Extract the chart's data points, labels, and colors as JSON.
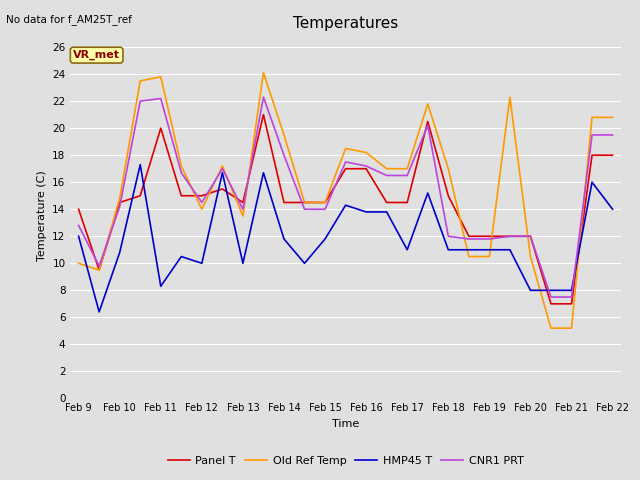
{
  "title": "Temperatures",
  "xlabel": "Time",
  "ylabel": "Temperature (C)",
  "annotation_text": "No data for f_AM25T_ref",
  "legend_label_text": "VR_met",
  "ylim": [
    0,
    27
  ],
  "yticks": [
    0,
    2,
    4,
    6,
    8,
    10,
    12,
    14,
    16,
    18,
    20,
    22,
    24,
    26
  ],
  "background_color": "#e0e0e0",
  "plot_bg_color": "#e0e0e0",
  "grid_color": "#ffffff",
  "x_labels": [
    "Feb 9",
    "Feb 10",
    "Feb 11",
    "Feb 12",
    "Feb 13",
    "Feb 14",
    "Feb 15",
    "Feb 16",
    "Feb 17",
    "Feb 18",
    "Feb 19",
    "Feb 20",
    "Feb 21",
    "Feb 22"
  ],
  "x_tick_positions": [
    0,
    1,
    2,
    3,
    4,
    5,
    6,
    7,
    8,
    9,
    10,
    11,
    12,
    13
  ],
  "series": {
    "Panel T": {
      "color": "#dd0000",
      "x": [
        0,
        0.5,
        1,
        1.5,
        2,
        2.5,
        3,
        3.5,
        4,
        4.5,
        5,
        5.5,
        6,
        6.5,
        7,
        7.5,
        8,
        8.5,
        9,
        9.5,
        10,
        10.5,
        11,
        11.5,
        12,
        12.5,
        13
      ],
      "y": [
        14.0,
        9.5,
        14.5,
        15.0,
        20.0,
        15.0,
        15.0,
        15.5,
        14.5,
        21.0,
        14.5,
        14.5,
        14.5,
        17.0,
        17.0,
        14.5,
        14.5,
        20.5,
        15.0,
        12.0,
        12.0,
        12.0,
        12.0,
        7.0,
        7.0,
        18.0,
        18.0
      ]
    },
    "Old Ref Temp": {
      "color": "#ff9900",
      "x": [
        0,
        0.5,
        1,
        1.5,
        2,
        2.5,
        3,
        3.5,
        4,
        4.5,
        5,
        5.5,
        6,
        6.5,
        7,
        7.5,
        8,
        8.5,
        9,
        9.5,
        10,
        10.5,
        11,
        11.5,
        12,
        12.5,
        13
      ],
      "y": [
        10.0,
        9.5,
        14.8,
        23.5,
        23.8,
        17.2,
        14.0,
        17.2,
        13.5,
        24.1,
        19.5,
        14.5,
        14.5,
        18.5,
        18.2,
        17.0,
        17.0,
        21.8,
        17.0,
        10.5,
        10.5,
        22.3,
        10.5,
        5.2,
        5.2,
        20.8,
        20.8
      ]
    },
    "HMP45 T": {
      "color": "#0000cc",
      "x": [
        0,
        0.5,
        1,
        1.5,
        2,
        2.5,
        3,
        3.5,
        4,
        4.5,
        5,
        5.5,
        6,
        6.5,
        7,
        7.5,
        8,
        8.5,
        9,
        9.5,
        10,
        10.5,
        11,
        11.5,
        12,
        12.5,
        13
      ],
      "y": [
        12.0,
        6.4,
        10.8,
        17.3,
        8.3,
        10.5,
        10.0,
        16.7,
        10.0,
        16.7,
        11.8,
        10.0,
        11.8,
        14.3,
        13.8,
        13.8,
        11.0,
        15.2,
        11.0,
        11.0,
        11.0,
        11.0,
        8.0,
        8.0,
        8.0,
        16.0,
        14.0
      ]
    },
    "CNR1 PRT": {
      "color": "#bb44dd",
      "x": [
        0,
        0.5,
        1,
        1.5,
        2,
        2.5,
        3,
        3.5,
        4,
        4.5,
        5,
        5.5,
        6,
        6.5,
        7,
        7.5,
        8,
        8.5,
        9,
        9.5,
        10,
        10.5,
        11,
        11.5,
        12,
        12.5,
        13
      ],
      "y": [
        12.8,
        9.8,
        14.2,
        22.0,
        22.2,
        16.7,
        14.5,
        17.0,
        14.0,
        22.3,
        18.0,
        14.0,
        14.0,
        17.5,
        17.2,
        16.5,
        16.5,
        20.2,
        12.0,
        11.8,
        11.8,
        12.0,
        12.0,
        7.5,
        7.5,
        19.5,
        19.5
      ]
    }
  }
}
